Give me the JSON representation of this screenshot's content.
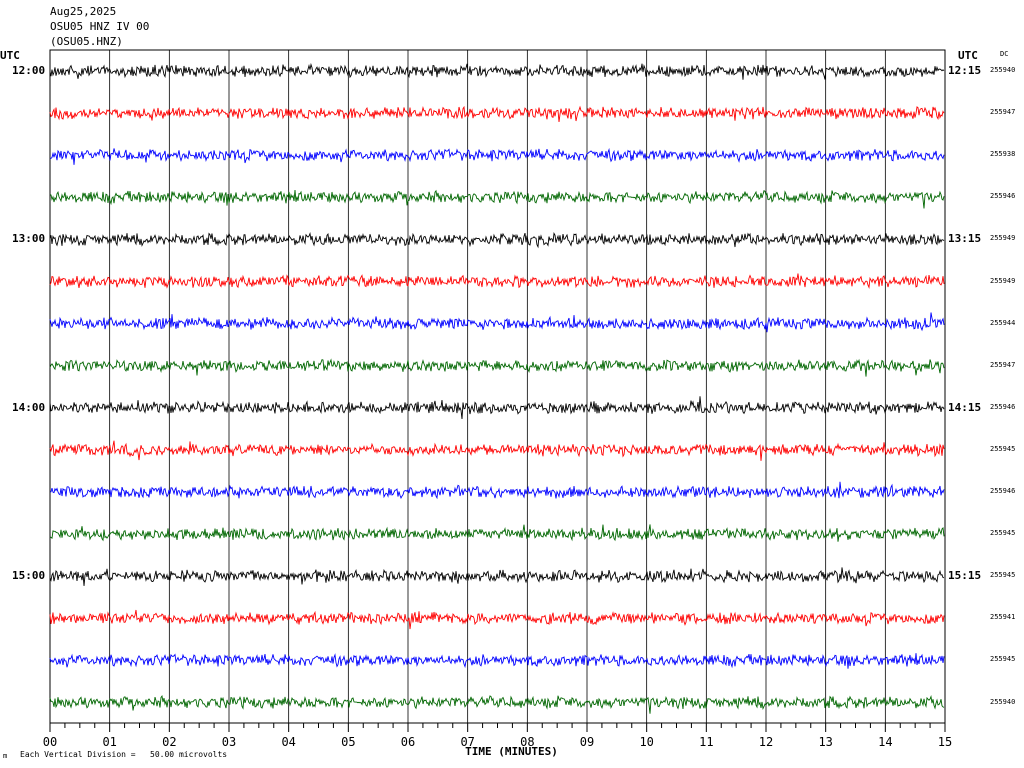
{
  "header": {
    "date": "Aug25,2025",
    "station": "OSU05 HNZ IV 00",
    "channel": "(OSU05.HNZ)"
  },
  "utc_left": "UTC",
  "utc_right": "UTC",
  "dc_header": "DC",
  "footer": {
    "scale_text": "Each Vertical Division =   50.00 microvolts",
    "corner_mark": "m"
  },
  "chart_data": {
    "type": "line",
    "xlabel": "TIME (MINUTES)",
    "xlim": [
      0,
      15
    ],
    "x_ticks": [
      "00",
      "01",
      "02",
      "03",
      "04",
      "05",
      "06",
      "07",
      "08",
      "09",
      "10",
      "11",
      "12",
      "13",
      "14",
      "15"
    ],
    "trace_colors": [
      "#000000",
      "#ff0000",
      "#0000ff",
      "#006600"
    ],
    "rows": [
      {
        "left_label": "12:00",
        "right_label": "12:15",
        "dc": "255940"
      },
      {
        "left_label": "",
        "right_label": "",
        "dc": "255947"
      },
      {
        "left_label": "",
        "right_label": "",
        "dc": "255938"
      },
      {
        "left_label": "",
        "right_label": "",
        "dc": "255946"
      },
      {
        "left_label": "13:00",
        "right_label": "13:15",
        "dc": "255949"
      },
      {
        "left_label": "",
        "right_label": "",
        "dc": "255949"
      },
      {
        "left_label": "",
        "right_label": "",
        "dc": "255944"
      },
      {
        "left_label": "",
        "right_label": "",
        "dc": "255947"
      },
      {
        "left_label": "14:00",
        "right_label": "14:15",
        "dc": "255946"
      },
      {
        "left_label": "",
        "right_label": "",
        "dc": "255945"
      },
      {
        "left_label": "",
        "right_label": "",
        "dc": "255946"
      },
      {
        "left_label": "",
        "right_label": "",
        "dc": "255945"
      },
      {
        "left_label": "15:00",
        "right_label": "15:15",
        "dc": "255945"
      },
      {
        "left_label": "",
        "right_label": "",
        "dc": "255941"
      },
      {
        "left_label": "",
        "right_label": "",
        "dc": "255945"
      },
      {
        "left_label": "",
        "right_label": "",
        "dc": "255940"
      }
    ]
  }
}
